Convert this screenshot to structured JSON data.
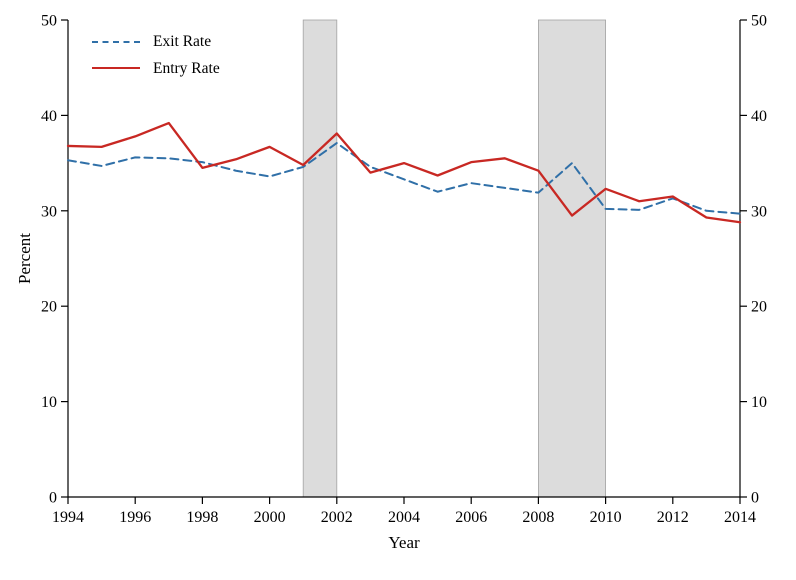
{
  "figure": {
    "background_color": "#ffffff",
    "axis_color": "#000000"
  },
  "legend": {
    "items": [
      {
        "label": "Exit Rate"
      },
      {
        "label": "Entry Rate"
      }
    ]
  },
  "chart_data": {
    "type": "line",
    "title": "",
    "xlabel": "Year",
    "ylabel": "Percent",
    "xlim": [
      1994,
      2014
    ],
    "ylim": [
      0,
      50
    ],
    "x_ticks": [
      1994,
      1996,
      1998,
      2000,
      2002,
      2004,
      2006,
      2008,
      2010,
      2012,
      2014
    ],
    "y_ticks": [
      0,
      10,
      20,
      30,
      40,
      50
    ],
    "grid": false,
    "legend_position": "top-left",
    "x": [
      1994,
      1995,
      1996,
      1997,
      1998,
      1999,
      2000,
      2001,
      2002,
      2003,
      2004,
      2005,
      2006,
      2007,
      2008,
      2009,
      2010,
      2011,
      2012,
      2013,
      2014
    ],
    "series": [
      {
        "name": "Exit Rate",
        "color": "#3070a8",
        "style": "dashed",
        "values": [
          35.3,
          34.7,
          35.6,
          35.5,
          35.1,
          34.2,
          33.6,
          34.6,
          37.1,
          34.6,
          33.3,
          32.0,
          32.9,
          32.4,
          31.9,
          35.0,
          30.2,
          30.1,
          31.3,
          30.0,
          29.7
        ]
      },
      {
        "name": "Entry Rate",
        "color": "#c82823",
        "style": "solid",
        "values": [
          36.8,
          36.7,
          37.8,
          39.2,
          34.5,
          35.4,
          36.7,
          34.8,
          38.1,
          34.0,
          35.0,
          33.7,
          35.1,
          35.5,
          34.2,
          29.5,
          32.3,
          31.0,
          31.5,
          29.3,
          28.8
        ]
      }
    ],
    "shaded_regions": [
      {
        "start": 2001,
        "end": 2002,
        "fill": "#dcdcdc",
        "stroke": "#a3a3a3"
      },
      {
        "start": 2008,
        "end": 2010,
        "fill": "#dcdcdc",
        "stroke": "#a3a3a3"
      }
    ]
  }
}
